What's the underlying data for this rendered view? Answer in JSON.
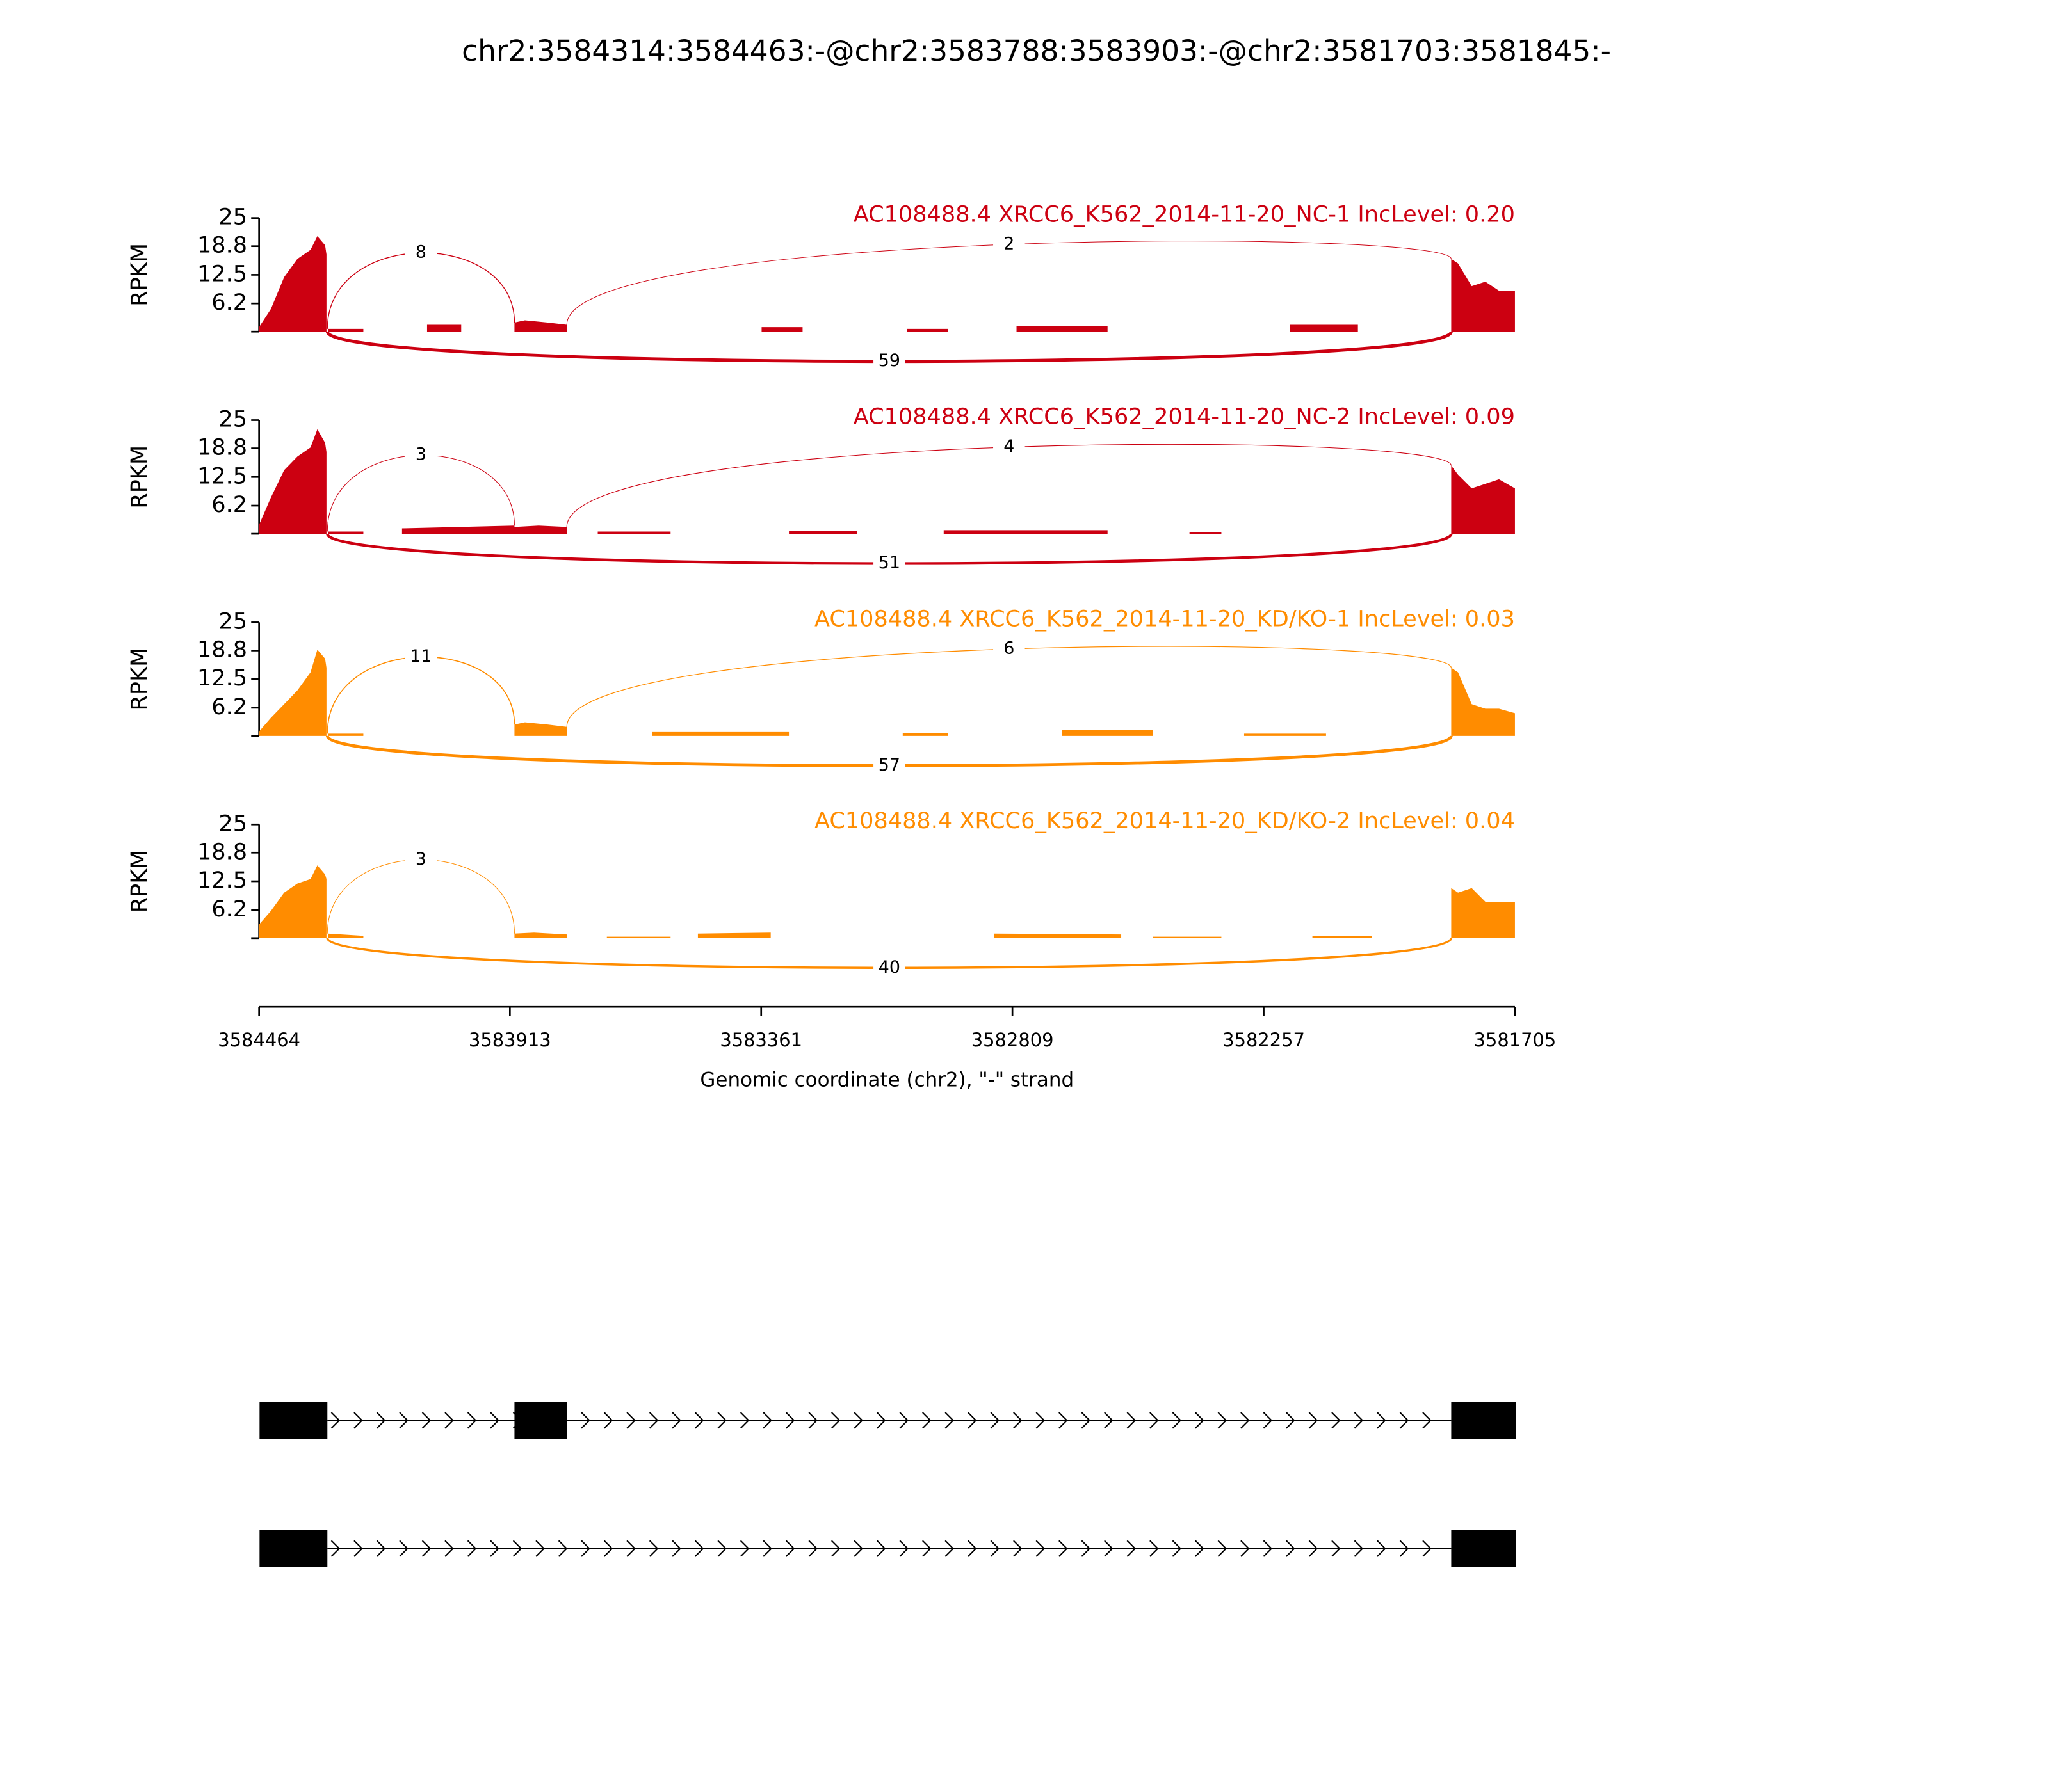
{
  "chart_data": {
    "type": "sashimi",
    "title": "chr2:3584314:3584463:-@chr2:3583788:3583903:-@chr2:3581703:3581845:-",
    "xlabel": "Genomic coordinate (chr2), \"-\" strand",
    "xlim": [
      3584464,
      3581705
    ],
    "xticks": [
      3584464,
      3583913,
      3583361,
      3582809,
      3582257,
      3581705
    ],
    "panels": [
      {
        "label": "AC108488.4 XRCC6_K562_2014-11-20_NC-1 IncLevel: 0.20",
        "color": "#cc0011",
        "ylabel": "RPKM",
        "ylim": [
          0,
          25
        ],
        "yticks": [
          6.2,
          12.5,
          18.8,
          25
        ],
        "coverage": {
          "x": [
            3584464,
            3584438,
            3584409,
            3584380,
            3584351,
            3584336,
            3584319,
            3584316,
            null,
            3584313,
            3584235,
            null,
            3584095,
            3584020,
            null,
            3583903,
            3583880,
            3583830,
            3583788,
            null,
            3583360,
            3583270,
            null,
            3583040,
            3582950,
            null,
            3582800,
            3582600,
            null,
            3582200,
            3582050,
            null,
            3581845,
            3581830,
            3581800,
            3581770,
            3581740,
            3581705
          ],
          "values": [
            1,
            5,
            12,
            16,
            18,
            21,
            19,
            17,
            null,
            0.6,
            0.6,
            null,
            1.5,
            1.5,
            null,
            2,
            2.5,
            2,
            1.5,
            null,
            1,
            1,
            null,
            0.6,
            0.6,
            null,
            1.2,
            1.2,
            null,
            1.5,
            1.5,
            null,
            16,
            15,
            10,
            11,
            9,
            9
          ]
        },
        "junctions": [
          {
            "start": 3584314,
            "end": 3583903,
            "count": 8,
            "side": "above"
          },
          {
            "start": 3583788,
            "end": 3581845,
            "count": 2,
            "side": "above"
          },
          {
            "start": 3584314,
            "end": 3581845,
            "count": 59,
            "side": "below"
          }
        ]
      },
      {
        "label": "AC108488.4 XRCC6_K562_2014-11-20_NC-2 IncLevel: 0.09",
        "color": "#cc0011",
        "ylabel": "RPKM",
        "ylim": [
          0,
          25
        ],
        "yticks": [
          6.2,
          12.5,
          18.8,
          25
        ],
        "coverage": {
          "x": [
            3584464,
            3584438,
            3584409,
            3584380,
            3584351,
            3584336,
            3584319,
            3584316,
            null,
            3584313,
            3584235,
            null,
            3584150,
            3583903,
            null,
            3583903,
            3583850,
            3583788,
            null,
            3583720,
            3583560,
            null,
            3583300,
            3583150,
            null,
            3582960,
            3582600,
            null,
            3582420,
            3582350,
            null,
            3581845,
            3581830,
            3581800,
            3581770,
            3581740,
            3581705
          ],
          "values": [
            2,
            8,
            14,
            17,
            19,
            23,
            20,
            18,
            null,
            0.5,
            0.5,
            null,
            1.2,
            1.8,
            null,
            1.5,
            1.8,
            1.5,
            null,
            0.5,
            0.5,
            null,
            0.6,
            0.6,
            null,
            0.8,
            0.8,
            null,
            0.4,
            0.4,
            null,
            15,
            13,
            10,
            11,
            12,
            10
          ]
        },
        "junctions": [
          {
            "start": 3584314,
            "end": 3583903,
            "count": 3,
            "side": "above"
          },
          {
            "start": 3583788,
            "end": 3581845,
            "count": 4,
            "side": "above"
          },
          {
            "start": 3584314,
            "end": 3581845,
            "count": 51,
            "side": "below"
          }
        ]
      },
      {
        "label": "AC108488.4 XRCC6_K562_2014-11-20_KD/KO-1 IncLevel: 0.03",
        "color": "#ff8c00",
        "ylabel": "RPKM",
        "ylim": [
          0,
          25
        ],
        "yticks": [
          6.2,
          12.5,
          18.8,
          25
        ],
        "coverage": {
          "x": [
            3584464,
            3584438,
            3584409,
            3584380,
            3584351,
            3584336,
            3584319,
            3584316,
            null,
            3584313,
            3584235,
            null,
            3583903,
            3583880,
            3583830,
            3583788,
            null,
            3583600,
            3583300,
            null,
            3583050,
            3582950,
            null,
            3582700,
            3582500,
            null,
            3582300,
            3582120,
            null,
            3581845,
            3581830,
            3581800,
            3581770,
            3581740,
            3581705
          ],
          "values": [
            1,
            4,
            7,
            10,
            14,
            19,
            17,
            15,
            null,
            0.5,
            0.5,
            null,
            2.5,
            3,
            2.5,
            2,
            null,
            1,
            1,
            null,
            0.6,
            0.6,
            null,
            1.3,
            1.3,
            null,
            0.5,
            0.5,
            null,
            15,
            14,
            7,
            6,
            6,
            5
          ]
        },
        "junctions": [
          {
            "start": 3584314,
            "end": 3583903,
            "count": 11,
            "side": "above"
          },
          {
            "start": 3583788,
            "end": 3581845,
            "count": 6,
            "side": "above"
          },
          {
            "start": 3584314,
            "end": 3581845,
            "count": 57,
            "side": "below"
          }
        ]
      },
      {
        "label": "AC108488.4 XRCC6_K562_2014-11-20_KD/KO-2 IncLevel: 0.04",
        "color": "#ff8c00",
        "ylabel": "RPKM",
        "ylim": [
          0,
          25
        ],
        "yticks": [
          6.2,
          12.5,
          18.8,
          25
        ],
        "coverage": {
          "x": [
            3584464,
            3584438,
            3584409,
            3584380,
            3584351,
            3584336,
            3584319,
            3584316,
            null,
            3584313,
            3584235,
            null,
            3583903,
            3583860,
            3583788,
            null,
            3583700,
            3583560,
            null,
            3583500,
            3583340,
            null,
            3582850,
            3582570,
            null,
            3582500,
            3582350,
            null,
            3582150,
            3582020,
            null,
            3581845,
            3581830,
            3581800,
            3581770,
            3581740,
            3581705
          ],
          "values": [
            3,
            6,
            10,
            12,
            13,
            16,
            14,
            13,
            null,
            1,
            0.5,
            null,
            1,
            1.2,
            0.8,
            null,
            0.3,
            0.3,
            null,
            1,
            1.2,
            null,
            1,
            0.8,
            null,
            0.3,
            0.3,
            null,
            0.5,
            0.5,
            null,
            11,
            10,
            11,
            8,
            8,
            8
          ]
        },
        "junctions": [
          {
            "start": 3584314,
            "end": 3583903,
            "count": 3,
            "side": "above"
          },
          {
            "start": 3584314,
            "end": 3581845,
            "count": 40,
            "side": "below"
          }
        ]
      }
    ],
    "transcripts": [
      {
        "exons": [
          [
            3584463,
            3584314
          ],
          [
            3583903,
            3583788
          ],
          [
            3581845,
            3581703
          ]
        ]
      },
      {
        "exons": [
          [
            3584463,
            3584314
          ],
          [
            3581845,
            3581703
          ]
        ]
      }
    ]
  }
}
